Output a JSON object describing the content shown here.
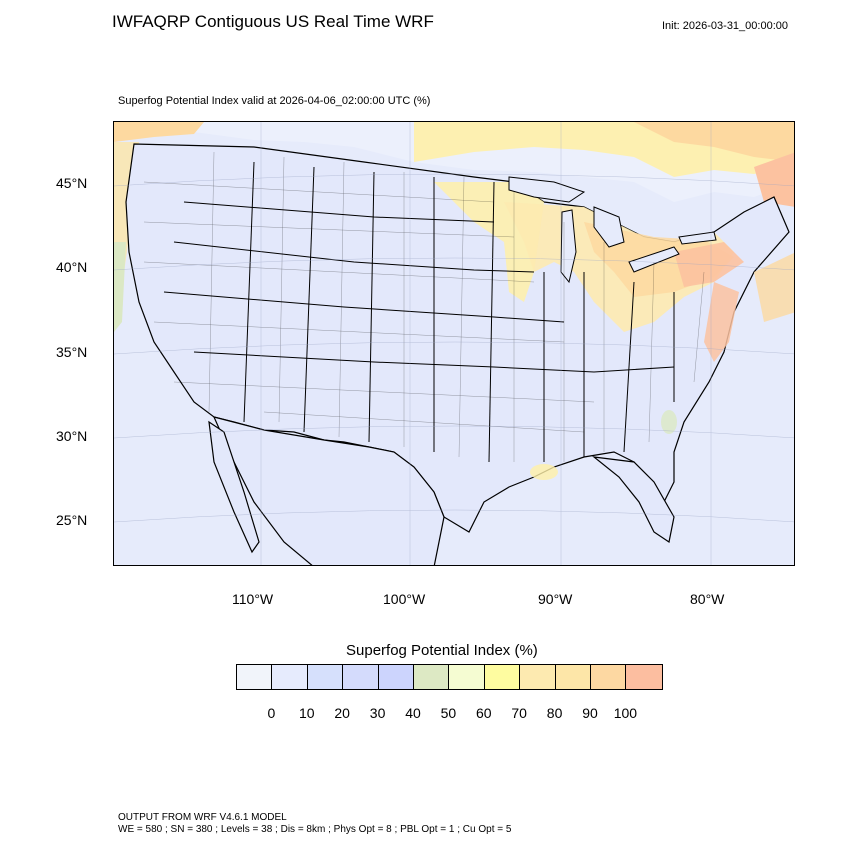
{
  "header": {
    "title": "IWFAQRP Contiguous US Real Time WRF",
    "init": "Init: 2026-03-31_00:00:00",
    "subtitle": "Superfog Potential Index valid at 2026-04-06_02:00:00 UTC   (%)"
  },
  "map": {
    "lat_labels": [
      "45°N",
      "40°N",
      "35°N",
      "30°N",
      "25°N"
    ],
    "lon_labels": [
      "110°W",
      "100°W",
      "90°W",
      "80°W"
    ],
    "colors": {
      "ocean": "#e6ebfb",
      "land_low": "#e3e8fb",
      "medium": "#fff0a8",
      "high": "#fdd9a0",
      "highest": "#fcc2a0",
      "green": "#dbe8c4"
    }
  },
  "colorbar": {
    "title": "Superfog Potential Index  (%)",
    "colors": [
      "#f1f4fa",
      "#e6ebfd",
      "#d6e0fc",
      "#d4dbfc",
      "#ccd4fd",
      "#dde9c4",
      "#f5fcd2",
      "#fefca0",
      "#fdeab0",
      "#fde6a8",
      "#fdd8a2",
      "#fcbea0"
    ],
    "ticks": [
      "0",
      "10",
      "20",
      "30",
      "40",
      "50",
      "60",
      "70",
      "80",
      "90",
      "100"
    ]
  },
  "footer": {
    "line1": "OUTPUT FROM WRF V4.6.1 MODEL",
    "line2": "WE = 580 ; SN = 380 ; Levels = 38 ; Dis = 8km ; Phys Opt = 8 ; PBL Opt = 1 ; Cu Opt = 5"
  }
}
